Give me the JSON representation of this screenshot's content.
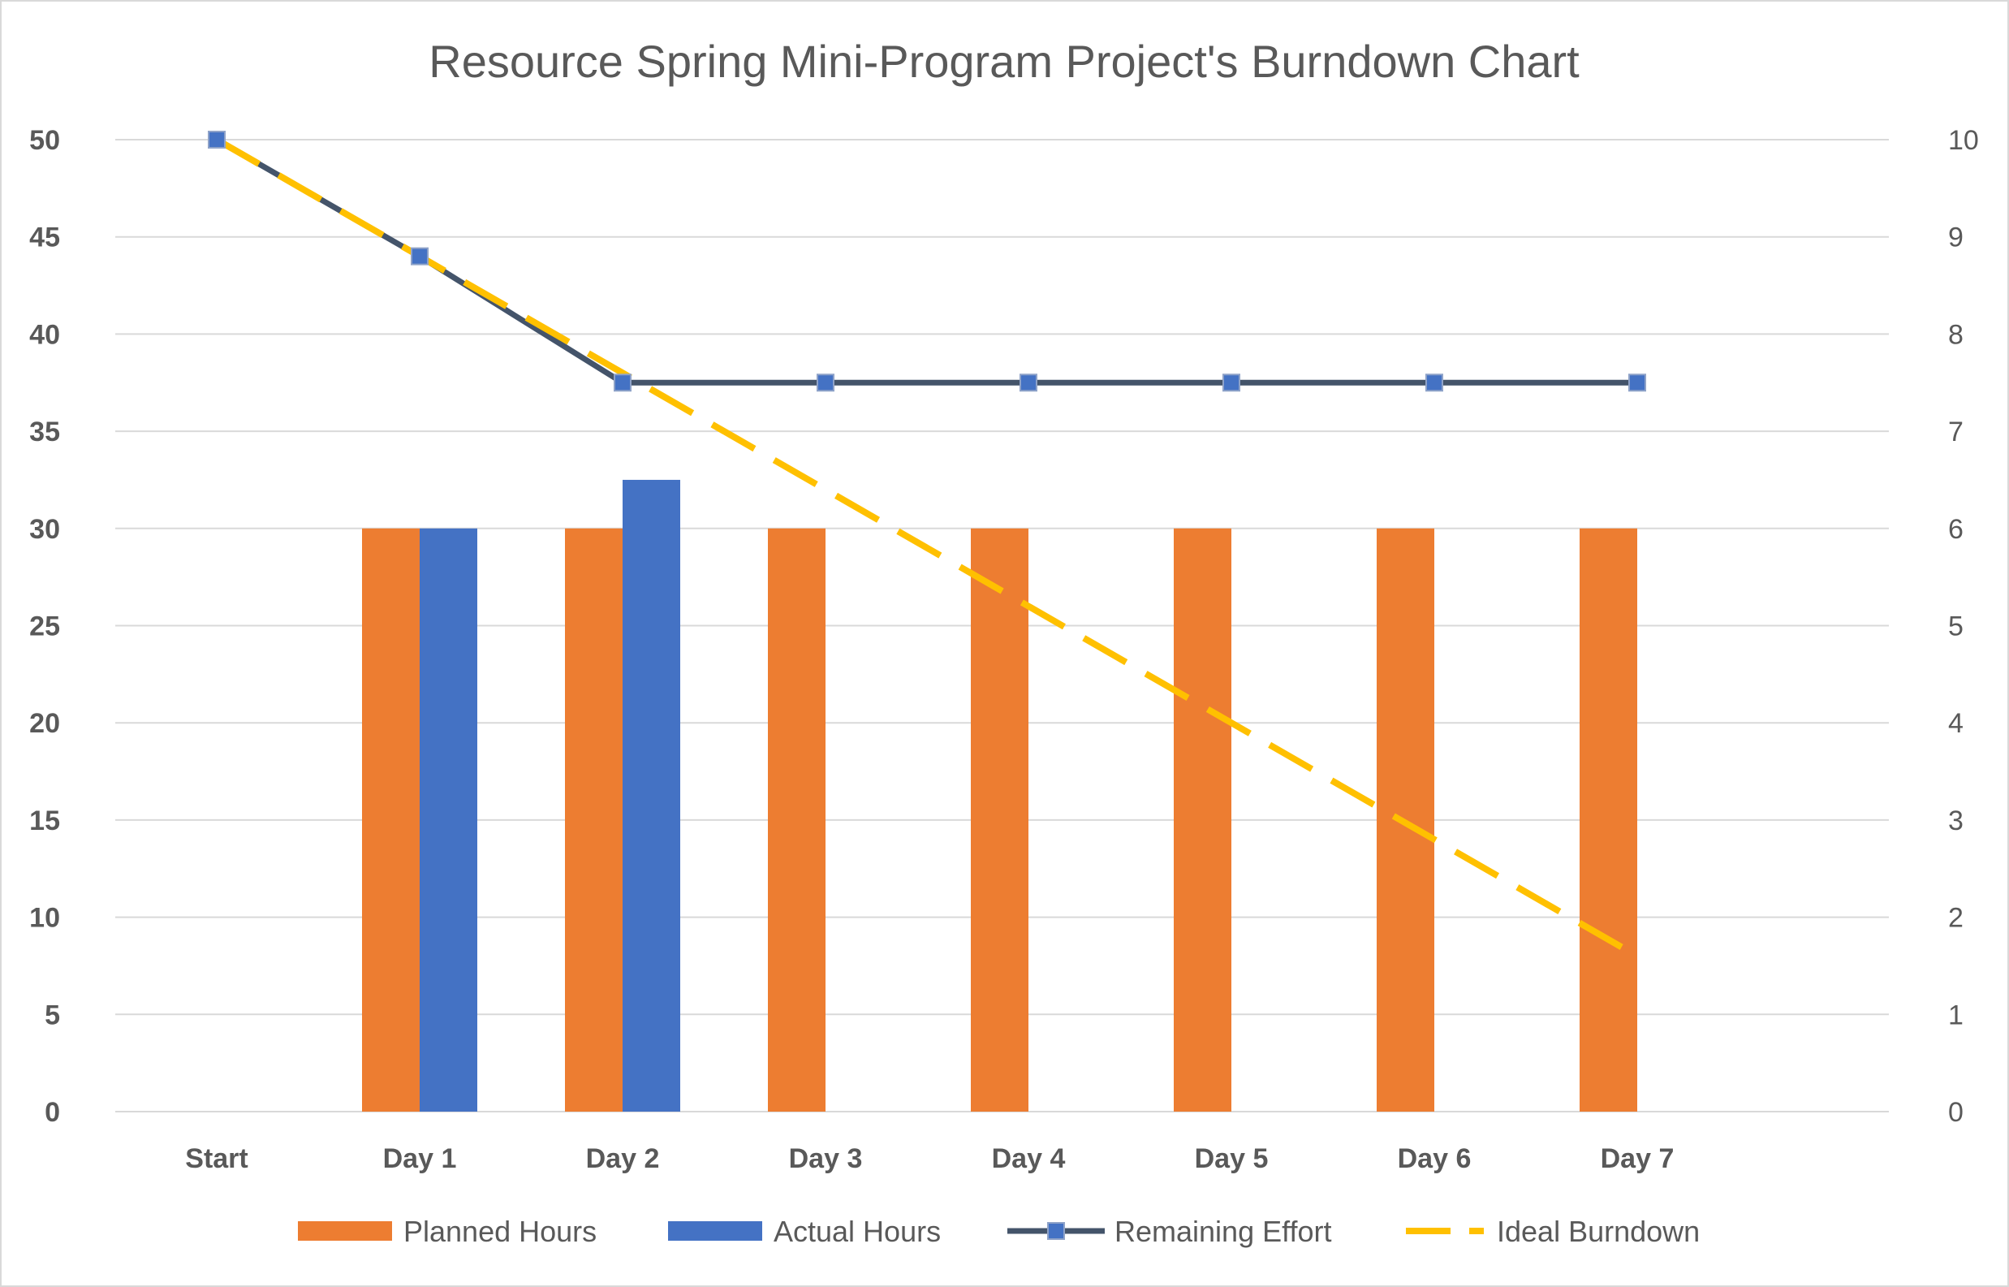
{
  "chart_data": {
    "type": "bar",
    "title": "Resource Spring Mini-Program Project's Burndown Chart",
    "categories": [
      "Start",
      "Day 1",
      "Day 2",
      "Day 3",
      "Day 4",
      "Day 5",
      "Day 6",
      "Day 7"
    ],
    "y_left": {
      "ticks": [
        "0",
        "5",
        "10",
        "15",
        "20",
        "25",
        "30",
        "35",
        "40",
        "45",
        "50"
      ],
      "min": 0,
      "max": 50
    },
    "y_right": {
      "ticks": [
        "0",
        "1",
        "2",
        "3",
        "4",
        "5",
        "6",
        "7",
        "8",
        "9",
        "10"
      ],
      "min": 0,
      "max": 10
    },
    "grid": true,
    "legend_position": "bottom",
    "series": [
      {
        "name": "Planned Hours",
        "type": "bar",
        "axis": "left",
        "color": "#ED7D31",
        "values": [
          null,
          30,
          30,
          30,
          30,
          30,
          30,
          30
        ]
      },
      {
        "name": "Actual Hours",
        "type": "bar",
        "axis": "left",
        "color": "#4472C4",
        "values": [
          null,
          30,
          32.5,
          null,
          null,
          null,
          null,
          null
        ]
      },
      {
        "name": "Remaining Effort",
        "type": "line-marker",
        "axis": "right",
        "color": "#44546A",
        "marker_color": "#4472C4",
        "values": [
          10,
          8.8,
          7.5,
          7.5,
          7.5,
          7.5,
          7.5,
          7.5
        ]
      },
      {
        "name": "Ideal Burndown",
        "type": "line-dashed",
        "axis": "right",
        "color": "#FFC000",
        "values": [
          10,
          8.8,
          7.6,
          6.4,
          5.2,
          4.0,
          2.8,
          1.6
        ]
      }
    ]
  }
}
